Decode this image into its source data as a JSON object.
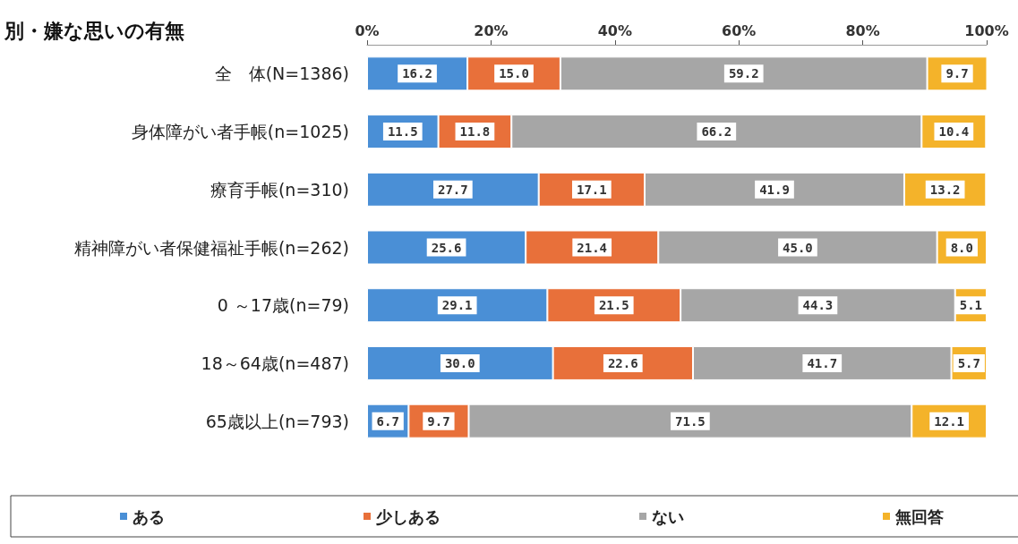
{
  "chart_data": {
    "type": "bar",
    "orientation": "horizontal",
    "stacked": true,
    "title": "別・嫌な思いの有無",
    "categories": [
      "全　体(N=1386)",
      "身体障がい者手帳(n=1025)",
      "療育手帳(n=310)",
      "精神障がい者保健福祉手帳(n=262)",
      "0 ～17歳(n=79)",
      "18～64歳(n=487)",
      "65歳以上(n=793)"
    ],
    "series": [
      {
        "name": "ある",
        "color": "#4a8fd6",
        "values": [
          16.2,
          11.5,
          27.7,
          25.6,
          29.1,
          30.0,
          6.7
        ],
        "value_labels": [
          "16.2",
          "11.5",
          "27.7",
          "25.6",
          "29.1",
          "30.0",
          "6.7"
        ]
      },
      {
        "name": "少しある",
        "color": "#e8703a",
        "values": [
          15.0,
          11.8,
          17.1,
          21.4,
          21.5,
          22.6,
          9.7
        ],
        "value_labels": [
          "15.0",
          "11.8",
          "17.1",
          "21.4",
          "21.5",
          "22.6",
          "9.7"
        ]
      },
      {
        "name": "ない",
        "color": "#a6a6a6",
        "values": [
          59.2,
          66.2,
          41.9,
          45.0,
          44.3,
          41.7,
          71.5
        ],
        "value_labels": [
          "59.2",
          "66.2",
          "41.9",
          "45.0",
          "44.3",
          "41.7",
          "71.5"
        ]
      },
      {
        "name": "無回答",
        "color": "#f4b32a",
        "values": [
          9.7,
          10.4,
          13.2,
          8.0,
          5.1,
          5.7,
          12.1
        ],
        "value_labels": [
          "9.7",
          "10.4",
          "13.2",
          "8.0",
          "5.1",
          "5.7",
          "12.1"
        ]
      }
    ],
    "xlim": [
      0,
      100
    ],
    "xticks": [
      {
        "value": 0,
        "label": "0%"
      },
      {
        "value": 20,
        "label": "20%"
      },
      {
        "value": 40,
        "label": "40%"
      },
      {
        "value": 60,
        "label": "60%"
      },
      {
        "value": 80,
        "label": "80%"
      },
      {
        "value": 100,
        "label": "100%"
      }
    ],
    "legend": "bottom",
    "grid": false
  }
}
